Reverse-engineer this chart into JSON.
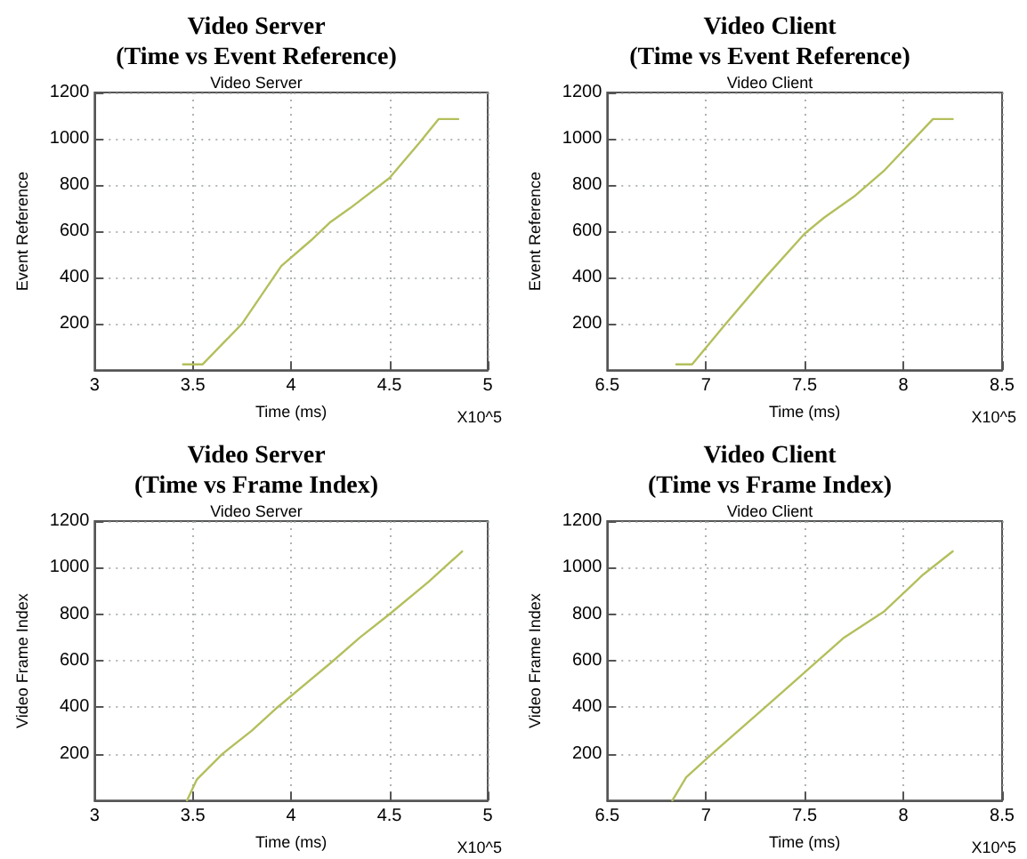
{
  "chart_data": [
    {
      "type": "line",
      "title": "Video Server\n(Time vs Event Reference)",
      "subtitle": "Video Server",
      "xlabel": "Time (ms)",
      "ylabel": "Event Reference",
      "annotations": [
        "X10^5"
      ],
      "x": [
        3.45,
        3.55,
        3.75,
        3.95,
        4.1,
        4.2,
        4.3,
        4.5,
        4.65,
        4.75,
        4.85
      ],
      "series": [
        {
          "color": "#b4bf5c",
          "values": [
            25,
            25,
            200,
            450,
            560,
            640,
            700,
            830,
            980,
            1085,
            1085
          ]
        }
      ],
      "xlim": [
        3,
        5
      ],
      "xticks": [
        3,
        3.5,
        4,
        4.5,
        5
      ],
      "ylim": [
        0,
        1200
      ],
      "yticks": [
        200,
        400,
        600,
        800,
        1000,
        1200
      ],
      "grid": true,
      "marker": "none",
      "line_style": "solid"
    },
    {
      "type": "line",
      "title": "Video Client\n(Time vs Event Reference)",
      "subtitle": "Video Client",
      "xlabel": "Time (ms)",
      "ylabel": "Event Reference",
      "annotations": [
        "X10^5"
      ],
      "x": [
        6.85,
        6.93,
        7.1,
        7.3,
        7.5,
        7.6,
        7.75,
        7.9,
        8.0,
        8.15,
        8.25
      ],
      "series": [
        {
          "color": "#b4bf5c",
          "values": [
            25,
            25,
            200,
            400,
            590,
            660,
            750,
            860,
            950,
            1085,
            1085
          ]
        }
      ],
      "xlim": [
        6.5,
        8.5
      ],
      "xticks": [
        6.5,
        7,
        7.5,
        8,
        8.5
      ],
      "ylim": [
        0,
        1200
      ],
      "yticks": [
        200,
        400,
        600,
        800,
        1000,
        1200
      ],
      "grid": true,
      "marker": "none",
      "line_style": "solid"
    },
    {
      "type": "line",
      "title": "Video Server\n(Time vs Frame Index)",
      "subtitle": "Video Server",
      "xlabel": "Time (ms)",
      "ylabel": "Video Frame Index",
      "annotations": [
        "X10^5"
      ],
      "x": [
        3.47,
        3.52,
        3.65,
        3.8,
        3.93,
        4.2,
        4.35,
        4.5,
        4.7,
        4.87
      ],
      "series": [
        {
          "color": "#b4bf5c",
          "values": [
            0,
            90,
            200,
            300,
            400,
            590,
            700,
            800,
            940,
            1070
          ]
        }
      ],
      "xlim": [
        3,
        5
      ],
      "xticks": [
        3,
        3.5,
        4,
        4.5,
        5
      ],
      "ylim": [
        0,
        1200
      ],
      "yticks": [
        200,
        400,
        600,
        800,
        1000,
        1200
      ],
      "grid": true,
      "marker": "none",
      "line_style": "solid"
    },
    {
      "type": "line",
      "title": "Video Client\n(Time vs Frame Index)",
      "subtitle": "Video Client",
      "xlabel": "Time (ms)",
      "ylabel": "Video Frame Index",
      "annotations": [
        "X10^5"
      ],
      "x": [
        6.83,
        6.9,
        7.03,
        7.3,
        7.5,
        7.7,
        7.9,
        8.1,
        8.25
      ],
      "series": [
        {
          "color": "#b4bf5c",
          "values": [
            0,
            100,
            200,
            400,
            550,
            700,
            810,
            970,
            1070
          ]
        }
      ],
      "xlim": [
        6.5,
        8.5
      ],
      "xticks": [
        6.5,
        7,
        7.5,
        8,
        8.5
      ],
      "ylim": [
        0,
        1200
      ],
      "yticks": [
        200,
        400,
        600,
        800,
        1000,
        1200
      ],
      "grid": true,
      "marker": "none",
      "line_style": "solid"
    }
  ]
}
